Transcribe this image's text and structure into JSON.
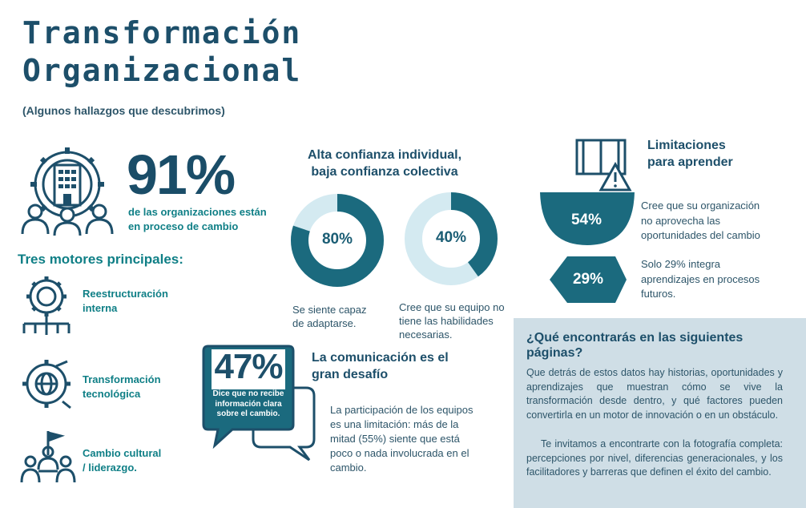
{
  "header": {
    "title_line1": "Transformación",
    "title_line2": "Organizacional",
    "subtitle": "(Algunos hallazgos que descubrimos)"
  },
  "stat_91": {
    "value": "91%",
    "line1": "de las organizaciones están",
    "line2": "en proceso de cambio"
  },
  "motors": {
    "title": "Tres motores principales:",
    "items": [
      {
        "line1": "Reestructuración",
        "line2": "interna",
        "icon": "gear-cycle-icon"
      },
      {
        "line1": "Transformación",
        "line2": "tecnológica",
        "icon": "gear-globe-icon"
      },
      {
        "line1": "Cambio cultural",
        "line2": "/ liderazgo.",
        "icon": "people-flag-icon"
      }
    ]
  },
  "confidence": {
    "heading_line1": "Alta confianza individual,",
    "heading_line2": "baja confianza colectiva",
    "donuts": [
      {
        "label": "80%",
        "percent": 80,
        "cap_line1": "Se siente capaz",
        "cap_line2": "de adaptarse.",
        "cap_line3": ""
      },
      {
        "label": "40%",
        "percent": 40,
        "cap_line1": "Cree que su equipo no",
        "cap_line2": "tiene las habilidades",
        "cap_line3": "necesarias."
      }
    ]
  },
  "limitations": {
    "heading_line1": "Limitaciones",
    "heading_line2": "para aprender",
    "items": [
      {
        "label": "54%",
        "line1": "Cree que su organización",
        "line2": "no aprovecha las",
        "line3": "oportunidades del cambio"
      },
      {
        "label": "29%",
        "line1": "Solo 29% integra",
        "line2": "aprendizajes en procesos",
        "line3": "futuros."
      }
    ]
  },
  "communication": {
    "value": "47%",
    "bubble_line1": "Dice que no recibe",
    "bubble_line2": "información clara",
    "bubble_line3": "sobre el cambio.",
    "heading_line1": "La comunicación es el",
    "heading_line2": "gran desafío",
    "body_lines": [
      "La participación de los equipos",
      "es una limitación: más de la",
      "mitad (55%) siente que está",
      "poco o nada involucrada en el",
      "cambio."
    ]
  },
  "panel": {
    "heading_line1": "¿Qué encontrarás en las siguientes",
    "heading_line2": "páginas?",
    "paragraph1": "Que detrás de estos datos hay historias, oportunidades y aprendizajes que muestran cómo se vive la transformación desde dentro, y qué factores pueden convertirla en un motor de innovación o en un obstáculo.",
    "paragraph2": "Te invitamos a encontrarte con la fotografía completa: percepciones por nivel, diferencias generacionales, y los facilitadores y barreras que definen el éxito del cambio."
  },
  "colors": {
    "dark_teal": "#1b6a7e",
    "light_teal": "#d4eaf1",
    "navy": "#1d4f6a",
    "accent": "#0f7f86",
    "panel_bg": "#cfdee6"
  }
}
